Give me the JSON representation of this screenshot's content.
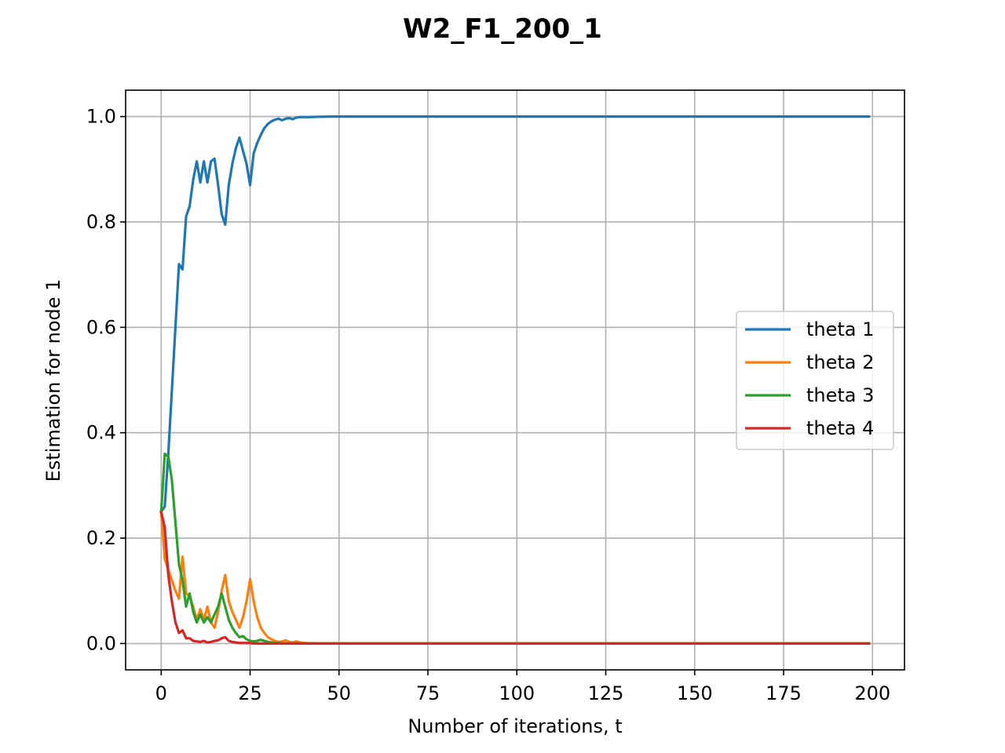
{
  "chart_data": {
    "type": "line",
    "title": "W2_F1_200_1",
    "xlabel": "Number of iterations, t",
    "ylabel": "Estimation for node 1",
    "xlim": [
      -10,
      209
    ],
    "ylim": [
      -0.05,
      1.05
    ],
    "xticks": [
      0,
      25,
      50,
      75,
      100,
      125,
      150,
      175,
      200
    ],
    "yticks": [
      0.0,
      0.2,
      0.4,
      0.6,
      0.8,
      1.0
    ],
    "xtick_labels": [
      "0",
      "25",
      "50",
      "75",
      "100",
      "125",
      "150",
      "175",
      "200"
    ],
    "ytick_labels": [
      "0.0",
      "0.2",
      "0.4",
      "0.6",
      "0.8",
      "1.0"
    ],
    "grid": true,
    "legend_position": "center-right",
    "series": [
      {
        "name": "theta 1",
        "color": "#1f77b4",
        "x": [
          0,
          1,
          2,
          3,
          4,
          5,
          6,
          7,
          8,
          9,
          10,
          11,
          12,
          13,
          14,
          15,
          16,
          17,
          18,
          19,
          20,
          21,
          22,
          23,
          24,
          25,
          26,
          27,
          28,
          29,
          30,
          31,
          32,
          33,
          34,
          35,
          36,
          37,
          38,
          39,
          40,
          42,
          44,
          46,
          48,
          50,
          60,
          80,
          100,
          120,
          140,
          160,
          180,
          199
        ],
        "y": [
          0.25,
          0.26,
          0.36,
          0.48,
          0.6,
          0.72,
          0.71,
          0.81,
          0.83,
          0.88,
          0.915,
          0.875,
          0.915,
          0.875,
          0.915,
          0.92,
          0.87,
          0.815,
          0.795,
          0.87,
          0.91,
          0.94,
          0.96,
          0.935,
          0.91,
          0.87,
          0.93,
          0.95,
          0.965,
          0.978,
          0.986,
          0.991,
          0.994,
          0.996,
          0.993,
          0.996,
          0.997,
          0.995,
          0.998,
          0.999,
          0.999,
          0.999,
          0.9995,
          0.9998,
          1.0,
          1.0,
          1.0,
          1.0,
          1.0,
          1.0,
          1.0,
          1.0,
          1.0,
          1.0
        ]
      },
      {
        "name": "theta 2",
        "color": "#ff7f0e",
        "x": [
          0,
          1,
          2,
          3,
          4,
          5,
          6,
          7,
          8,
          9,
          10,
          11,
          12,
          13,
          14,
          15,
          16,
          17,
          18,
          19,
          20,
          21,
          22,
          23,
          24,
          25,
          26,
          27,
          28,
          29,
          30,
          31,
          32,
          33,
          34,
          35,
          36,
          37,
          38,
          39,
          40,
          42,
          44,
          46,
          48,
          50,
          60,
          80,
          100,
          120,
          140,
          160,
          180,
          199
        ],
        "y": [
          0.25,
          0.16,
          0.14,
          0.12,
          0.1,
          0.085,
          0.165,
          0.095,
          0.09,
          0.07,
          0.045,
          0.065,
          0.045,
          0.07,
          0.04,
          0.03,
          0.06,
          0.1,
          0.13,
          0.08,
          0.06,
          0.045,
          0.03,
          0.05,
          0.08,
          0.122,
          0.08,
          0.05,
          0.03,
          0.02,
          0.012,
          0.008,
          0.005,
          0.003,
          0.004,
          0.006,
          0.003,
          0.002,
          0.004,
          0.002,
          0.001,
          0.0005,
          0.0003,
          0.0002,
          0.0001,
          0.0,
          0.0,
          0.0,
          0.0,
          0.0,
          0.0,
          0.0,
          0.0,
          0.0
        ]
      },
      {
        "name": "theta 3",
        "color": "#2ca02c",
        "x": [
          0,
          1,
          2,
          3,
          4,
          5,
          6,
          7,
          8,
          9,
          10,
          11,
          12,
          13,
          14,
          15,
          16,
          17,
          18,
          19,
          20,
          21,
          22,
          23,
          24,
          25,
          26,
          27,
          28,
          29,
          30,
          31,
          32,
          33,
          34,
          35,
          36,
          37,
          38,
          39,
          40,
          42,
          44,
          46,
          48,
          50,
          60,
          80,
          100,
          120,
          140,
          160,
          180,
          199
        ],
        "y": [
          0.25,
          0.36,
          0.355,
          0.31,
          0.23,
          0.15,
          0.12,
          0.07,
          0.095,
          0.06,
          0.04,
          0.055,
          0.04,
          0.05,
          0.04,
          0.055,
          0.07,
          0.095,
          0.07,
          0.045,
          0.03,
          0.02,
          0.012,
          0.014,
          0.008,
          0.005,
          0.004,
          0.005,
          0.007,
          0.005,
          0.003,
          0.002,
          0.001,
          0.001,
          0.0,
          0.0,
          0.0,
          0.0,
          0.0,
          0.0,
          0.0,
          0.0,
          0.0,
          0.0,
          0.0,
          0.0,
          0.0,
          0.0,
          0.0,
          0.0,
          0.0,
          0.0,
          0.0,
          0.0
        ]
      },
      {
        "name": "theta 4",
        "color": "#d62728",
        "x": [
          0,
          1,
          2,
          3,
          4,
          5,
          6,
          7,
          8,
          9,
          10,
          11,
          12,
          13,
          14,
          15,
          16,
          17,
          18,
          19,
          20,
          21,
          22,
          23,
          24,
          25,
          26,
          27,
          28,
          29,
          30,
          31,
          32,
          33,
          34,
          35,
          36,
          37,
          38,
          39,
          40,
          42,
          44,
          46,
          48,
          50,
          60,
          80,
          100,
          120,
          140,
          160,
          180,
          199
        ],
        "y": [
          0.25,
          0.22,
          0.13,
          0.08,
          0.04,
          0.02,
          0.025,
          0.01,
          0.01,
          0.005,
          0.004,
          0.003,
          0.005,
          0.002,
          0.003,
          0.005,
          0.006,
          0.01,
          0.012,
          0.005,
          0.003,
          0.002,
          0.001,
          0.001,
          0.001,
          0.001,
          0.0,
          0.0,
          0.0,
          0.0,
          0.0,
          0.0,
          0.0,
          0.0,
          0.0,
          0.0,
          0.0,
          0.0,
          0.0,
          0.0,
          0.0,
          0.0,
          0.0,
          0.0,
          0.0,
          0.0,
          0.0,
          0.0,
          0.0,
          0.0,
          0.0,
          0.0,
          0.0,
          0.0
        ]
      }
    ]
  }
}
